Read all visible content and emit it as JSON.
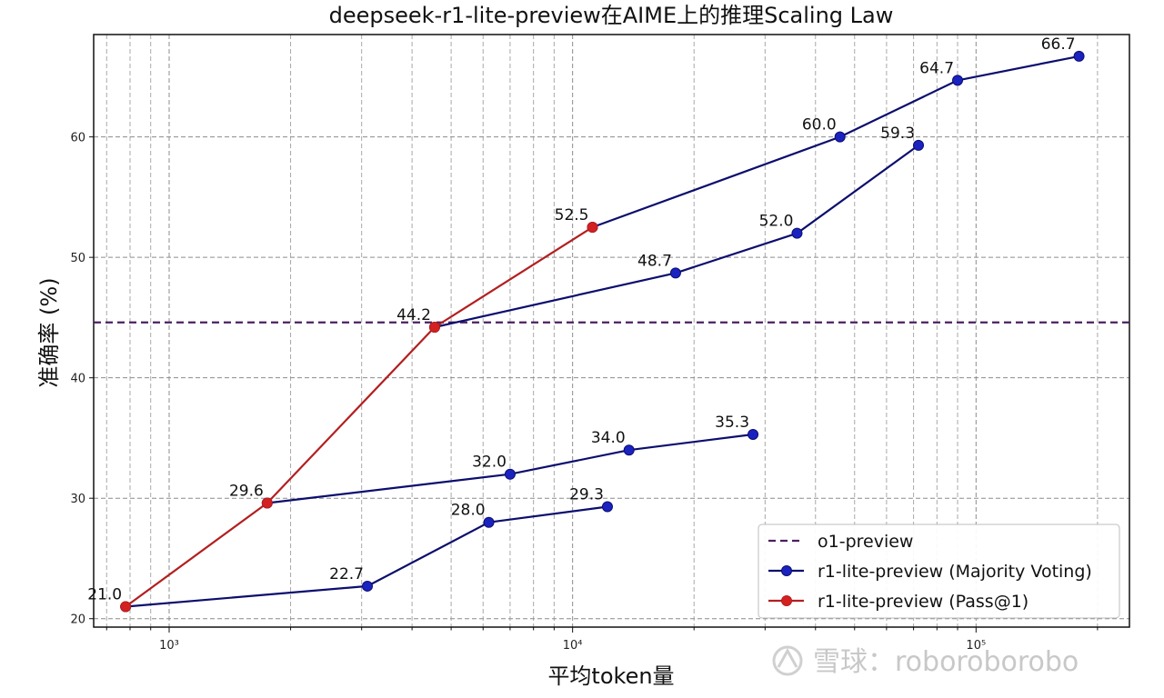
{
  "chart_data": {
    "type": "line",
    "title": "deepseek-r1-lite-preview在AIME上的推理Scaling Law",
    "xlabel": "平均token量",
    "ylabel": "准确率 (%)",
    "xscale": "log",
    "xlim": [
      650,
      240000
    ],
    "ylim": [
      19.3,
      68.5
    ],
    "yticks": [
      20,
      30,
      40,
      50,
      60
    ],
    "xticks": [
      1000,
      10000,
      100000
    ],
    "xtick_labels": [
      "10³",
      "10⁴",
      "10⁵"
    ],
    "grid": true,
    "legend_position": "lower-right",
    "reference_line": {
      "name": "o1-preview",
      "y": 44.6,
      "color": "#4a2060",
      "style": "dashed"
    },
    "series": [
      {
        "name": "r1-lite-preview (Majority Voting)",
        "color": "#0c0e6e",
        "marker_color": "#1a22c0",
        "segments": [
          [
            [
              780,
              21.0
            ],
            [
              3100,
              22.7
            ],
            [
              6200,
              28.0
            ],
            [
              12200,
              29.3
            ]
          ],
          [
            [
              1750,
              29.6
            ],
            [
              7000,
              32.0
            ],
            [
              13800,
              34.0
            ],
            [
              28000,
              35.3
            ]
          ],
          [
            [
              4550,
              44.2
            ],
            [
              18000,
              48.7
            ],
            [
              36000,
              52.0
            ],
            [
              72000,
              59.3
            ]
          ],
          [
            [
              11200,
              52.5
            ],
            [
              46000,
              60.0
            ],
            [
              90000,
              64.7
            ],
            [
              180000,
              66.7
            ]
          ]
        ]
      },
      {
        "name": "r1-lite-preview (Pass@1)",
        "color": "#b31f1f",
        "marker_color": "#d42020",
        "segments": [
          [
            [
              780,
              21.0
            ],
            [
              1750,
              29.6
            ],
            [
              4550,
              44.2
            ],
            [
              11200,
              52.5
            ]
          ]
        ]
      }
    ],
    "data_labels": [
      {
        "x": 780,
        "y": 21.0,
        "text": "21.0"
      },
      {
        "x": 3100,
        "y": 22.7,
        "text": "22.7"
      },
      {
        "x": 6200,
        "y": 28.0,
        "text": "28.0"
      },
      {
        "x": 12200,
        "y": 29.3,
        "text": "29.3"
      },
      {
        "x": 1750,
        "y": 29.6,
        "text": "29.6"
      },
      {
        "x": 7000,
        "y": 32.0,
        "text": "32.0"
      },
      {
        "x": 13800,
        "y": 34.0,
        "text": "34.0"
      },
      {
        "x": 28000,
        "y": 35.3,
        "text": "35.3"
      },
      {
        "x": 4550,
        "y": 44.2,
        "text": "44.2"
      },
      {
        "x": 18000,
        "y": 48.7,
        "text": "48.7"
      },
      {
        "x": 36000,
        "y": 52.0,
        "text": "52.0"
      },
      {
        "x": 72000,
        "y": 59.3,
        "text": "59.3"
      },
      {
        "x": 11200,
        "y": 52.5,
        "text": "52.5"
      },
      {
        "x": 46000,
        "y": 60.0,
        "text": "60.0"
      },
      {
        "x": 90000,
        "y": 64.7,
        "text": "64.7"
      },
      {
        "x": 180000,
        "y": 66.7,
        "text": "66.7"
      }
    ]
  },
  "watermark": {
    "text": "雪球：roboroborobo"
  }
}
